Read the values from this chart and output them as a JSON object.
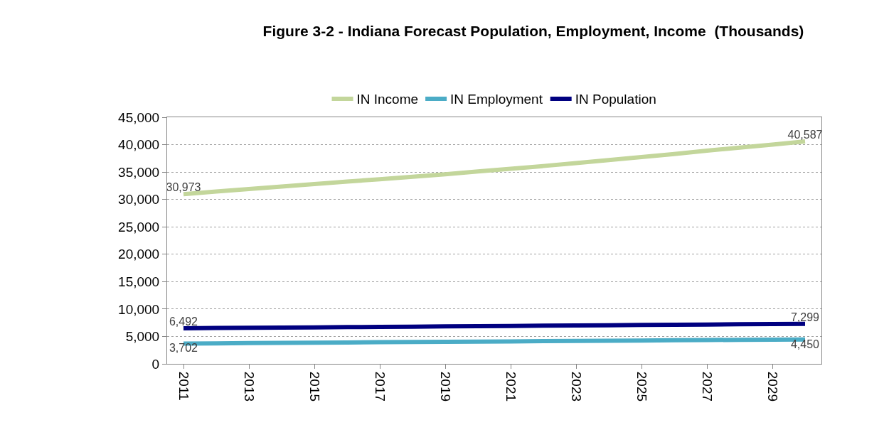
{
  "chart_data": {
    "type": "line",
    "title": "Figure 3-2 - Indiana Forecast Population, Employment, Income  (Thousands)",
    "categories": [
      "2011",
      null,
      "2013",
      null,
      "2015",
      null,
      "2017",
      null,
      "2019",
      null,
      "2021",
      null,
      "2023",
      null,
      "2025",
      null,
      "2027",
      null,
      "2029",
      null
    ],
    "series": [
      {
        "name": "IN Income",
        "color": "#c3d69b",
        "values": [
          30973,
          31450,
          31900,
          32350,
          32800,
          33250,
          33700,
          34150,
          34600,
          35100,
          35600,
          36100,
          36650,
          37200,
          37750,
          38300,
          38900,
          39450,
          40000,
          40587
        ],
        "value_labels": [
          "30,973",
          null,
          null,
          null,
          null,
          null,
          null,
          null,
          null,
          null,
          null,
          null,
          null,
          null,
          null,
          null,
          null,
          null,
          null,
          "40,587"
        ]
      },
      {
        "name": "IN Employment",
        "color": "#4bacc6",
        "values": [
          3702,
          3740,
          3780,
          3820,
          3860,
          3900,
          3940,
          3980,
          4020,
          4060,
          4100,
          4140,
          4180,
          4220,
          4260,
          4300,
          4340,
          4380,
          4415,
          4450
        ],
        "value_labels": [
          "3,702",
          null,
          null,
          null,
          null,
          null,
          null,
          null,
          null,
          null,
          null,
          null,
          null,
          null,
          null,
          null,
          null,
          null,
          null,
          "4,450"
        ]
      },
      {
        "name": "IN Population",
        "color": "#000080",
        "values": [
          6492,
          6535,
          6578,
          6620,
          6662,
          6705,
          6748,
          6790,
          6832,
          6875,
          6918,
          6960,
          7002,
          7045,
          7088,
          7130,
          7172,
          7215,
          7257,
          7299
        ],
        "value_labels": [
          "6,492",
          null,
          null,
          null,
          null,
          null,
          null,
          null,
          null,
          null,
          null,
          null,
          null,
          null,
          null,
          null,
          null,
          null,
          null,
          "7,299"
        ]
      }
    ],
    "ylim": [
      0,
      45000
    ],
    "yticks": [
      {
        "value": 0,
        "label": "0"
      },
      {
        "value": 5000,
        "label": "5,000"
      },
      {
        "value": 10000,
        "label": "10,000"
      },
      {
        "value": 15000,
        "label": "15,000"
      },
      {
        "value": 20000,
        "label": "20,000"
      },
      {
        "value": 25000,
        "label": "25,000"
      },
      {
        "value": 30000,
        "label": "30,000"
      },
      {
        "value": 35000,
        "label": "35,000"
      },
      {
        "value": 40000,
        "label": "40,000"
      },
      {
        "value": 45000,
        "label": "45,000"
      }
    ],
    "grid": "y",
    "legend": "top",
    "marker": "none",
    "line_style": "solid"
  }
}
